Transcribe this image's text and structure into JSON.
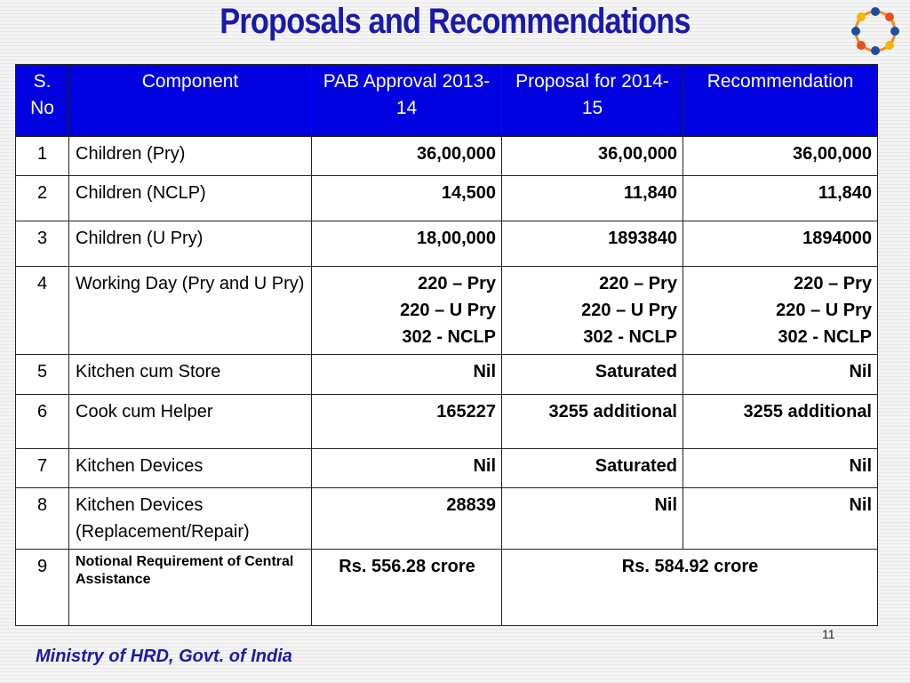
{
  "header": {
    "title": "Proposals and Recommendations"
  },
  "table": {
    "columns": [
      "S. No",
      "Component",
      "PAB Approval 2013-14",
      "Proposal for 2014-15",
      "Recommendation"
    ],
    "rows": [
      [
        "1",
        "Children (Pry)",
        "36,00,000",
        "36,00,000",
        "36,00,000"
      ],
      [
        "2",
        "Children (NCLP)",
        "14,500",
        "11,840",
        "11,840"
      ],
      [
        "3",
        "Children (U Pry)",
        "18,00,000",
        "1893840",
        "1894000"
      ],
      [
        "4",
        "Working Day (Pry and U Pry)",
        [
          "220 – Pry",
          "220 – U Pry",
          "302 - NCLP"
        ],
        [
          "220 – Pry",
          "220 – U Pry",
          "302 - NCLP"
        ],
        [
          "220 – Pry",
          "220 – U Pry",
          "302 - NCLP"
        ]
      ],
      [
        "5",
        "Kitchen cum Store",
        "Nil",
        "Saturated",
        "Nil"
      ],
      [
        "6",
        "Cook cum Helper",
        "165227",
        "3255 additional",
        "3255 additional"
      ],
      [
        "7",
        "Kitchen Devices",
        "Nil",
        "Saturated",
        "Nil"
      ],
      [
        "8",
        "Kitchen Devices (Replacement/Repair)",
        "28839",
        "Nil",
        "Nil"
      ],
      [
        "9",
        "Notional Requirement of Central Assistance",
        "Rs. 556.28 crore",
        "Rs. 584.92 crore"
      ]
    ]
  },
  "footer": {
    "ministry": "Ministry of HRD, Govt. of India",
    "page_number": "11"
  }
}
